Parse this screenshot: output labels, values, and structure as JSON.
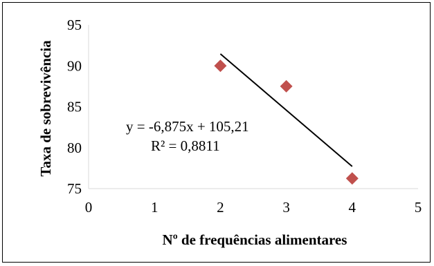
{
  "chart_data": {
    "type": "scatter",
    "title": "",
    "xlabel": "Nº de frequências alimentares",
    "ylabel": "Taxa de sobrevivência",
    "xlim": [
      0,
      5
    ],
    "ylim": [
      75,
      95
    ],
    "xticks": [
      "0",
      "1",
      "2",
      "3",
      "4",
      "5"
    ],
    "yticks": [
      "75",
      "80",
      "85",
      "90",
      "95"
    ],
    "grid": false,
    "legend": "none",
    "series": [
      {
        "x": [
          2,
          3,
          4
        ],
        "y": [
          90.0,
          87.5,
          76.25
        ],
        "marker": "diamond",
        "color": "#C0504D"
      }
    ],
    "trendline": {
      "type": "linear",
      "slope": -6.875,
      "intercept": 105.21,
      "x_range": [
        2,
        4
      ],
      "color": "#000000",
      "equation": "y = -6,875x + 105,21",
      "r_squared": "R² = 0,8811"
    }
  }
}
